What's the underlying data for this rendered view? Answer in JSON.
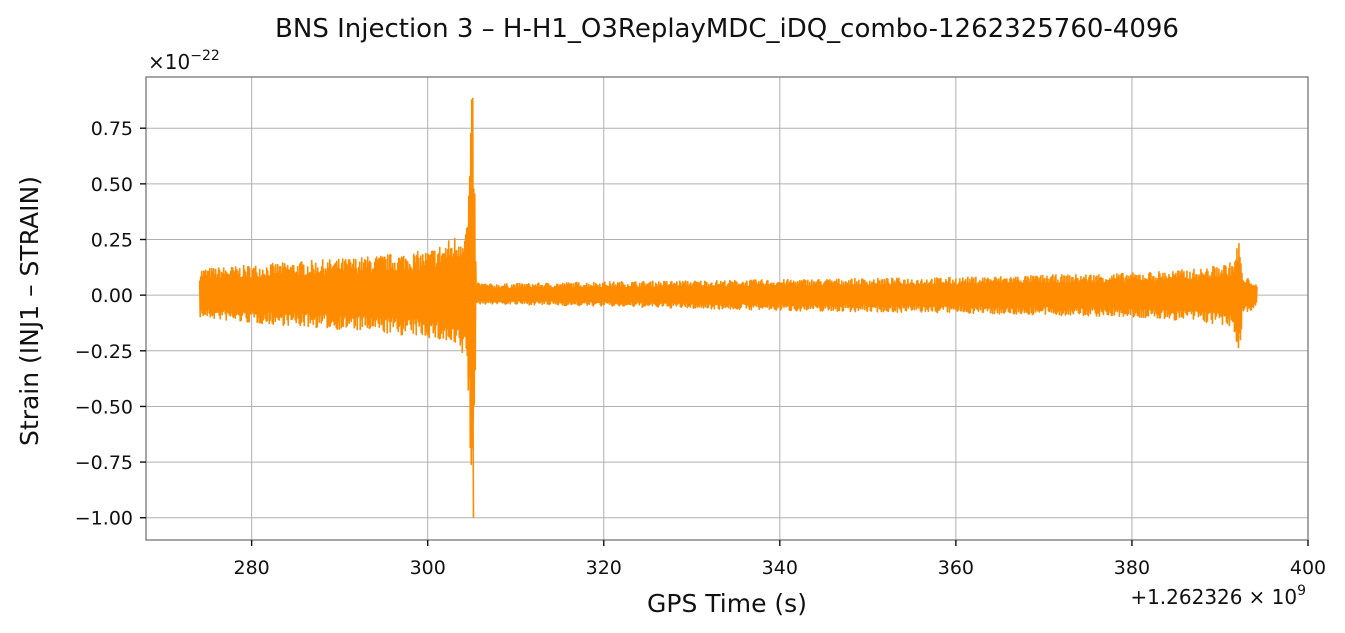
{
  "chart_data": {
    "type": "line",
    "title": "BNS Injection 3 – H-H1_O3ReplayMDC_iDQ_combo-1262325760-4096",
    "xlabel": "GPS Time (s)",
    "ylabel": "Strain (INJ1 – STRAIN)",
    "x_offset_label": "+1.262326",
    "x_offset_exp_label": "× 10",
    "x_offset_exp": "9",
    "y_scale_label": "×10",
    "y_scale_exp": "−22",
    "xlim": [
      268,
      400
    ],
    "ylim": [
      -1.1,
      0.98
    ],
    "x_ticks": [
      280,
      300,
      320,
      340,
      360,
      380,
      400
    ],
    "x_tick_labels": [
      "280",
      "300",
      "320",
      "340",
      "360",
      "380",
      "400"
    ],
    "y_ticks": [
      0.75,
      0.5,
      0.25,
      0.0,
      -0.25,
      -0.5,
      -0.75,
      -1.0
    ],
    "y_tick_labels": [
      "0.75",
      "0.50",
      "0.25",
      "0.00",
      "−0.25",
      "−0.50",
      "−0.75",
      "−1.00"
    ],
    "grid": true,
    "color": "#ff8c00",
    "series": [
      {
        "x": [
          274.1,
          278,
          285,
          292,
          297,
          300,
          302,
          303.5,
          304.5,
          305.0,
          305.2,
          305.5,
          307,
          320,
          340,
          360,
          380,
          388,
          391.5,
          392.2,
          392.6,
          393.5,
          394.2
        ],
        "y_max": [
          0.12,
          0.13,
          0.15,
          0.17,
          0.19,
          0.2,
          0.24,
          0.28,
          0.34,
          0.88,
          0.89,
          0.06,
          0.05,
          0.06,
          0.07,
          0.08,
          0.1,
          0.12,
          0.15,
          0.26,
          0.07,
          0.08,
          0.04
        ],
        "y_min": [
          -0.1,
          -0.12,
          -0.14,
          -0.16,
          -0.18,
          -0.19,
          -0.22,
          -0.26,
          -0.3,
          -1.01,
          -1.0,
          -0.04,
          -0.04,
          -0.05,
          -0.07,
          -0.08,
          -0.1,
          -0.12,
          -0.15,
          -0.28,
          -0.07,
          -0.08,
          -0.04
        ]
      }
    ]
  }
}
